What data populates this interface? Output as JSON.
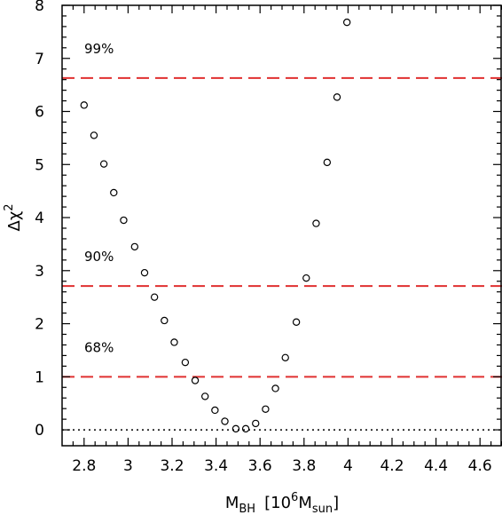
{
  "chart_data": {
    "type": "scatter",
    "title": "",
    "xlabel": {
      "base": "M",
      "sub": "BH",
      "bracket_open": "[",
      "power_base": "10",
      "power_exp": "6",
      "mass": "M",
      "mass_sub": "sun",
      "bracket_close": "]"
    },
    "ylabel": {
      "symbol": "Δχ",
      "exp": "2"
    },
    "xlim": [
      2.7,
      4.7
    ],
    "ylim": [
      -0.3,
      8
    ],
    "xticks": [
      "2.8",
      "3",
      "3.2",
      "3.4",
      "3.6",
      "3.8",
      "4",
      "4.2",
      "4.4",
      "4.6"
    ],
    "yticks": [
      "0",
      "1",
      "2",
      "3",
      "4",
      "5",
      "6",
      "7",
      "8"
    ],
    "series": [
      {
        "marker": "open-circle",
        "color": "#000000",
        "x": [
          2.8,
          2.845,
          2.89,
          2.935,
          2.98,
          3.03,
          3.075,
          3.12,
          3.165,
          3.21,
          3.26,
          3.305,
          3.35,
          3.395,
          3.44,
          3.49,
          3.535,
          3.58,
          3.625,
          3.67,
          3.715,
          3.765,
          3.81,
          3.855,
          3.905,
          3.95,
          3.995
        ],
        "y": [
          6.12,
          5.55,
          5.01,
          4.47,
          3.95,
          3.45,
          2.96,
          2.5,
          2.06,
          1.65,
          1.27,
          0.93,
          0.63,
          0.37,
          0.16,
          0.02,
          0.02,
          0.12,
          0.39,
          0.78,
          1.36,
          2.03,
          2.86,
          3.89,
          5.04,
          6.27,
          7.68
        ]
      }
    ],
    "hlines": [
      {
        "y": 0,
        "style": "dotted",
        "color": "#000000"
      },
      {
        "y": 1.0,
        "style": "dashed",
        "color": "#e03030",
        "label": "68%"
      },
      {
        "y": 2.71,
        "style": "dashed",
        "color": "#e03030",
        "label": "90%"
      },
      {
        "y": 6.63,
        "style": "dashed",
        "color": "#e03030",
        "label": "99%"
      }
    ],
    "grid": false
  }
}
